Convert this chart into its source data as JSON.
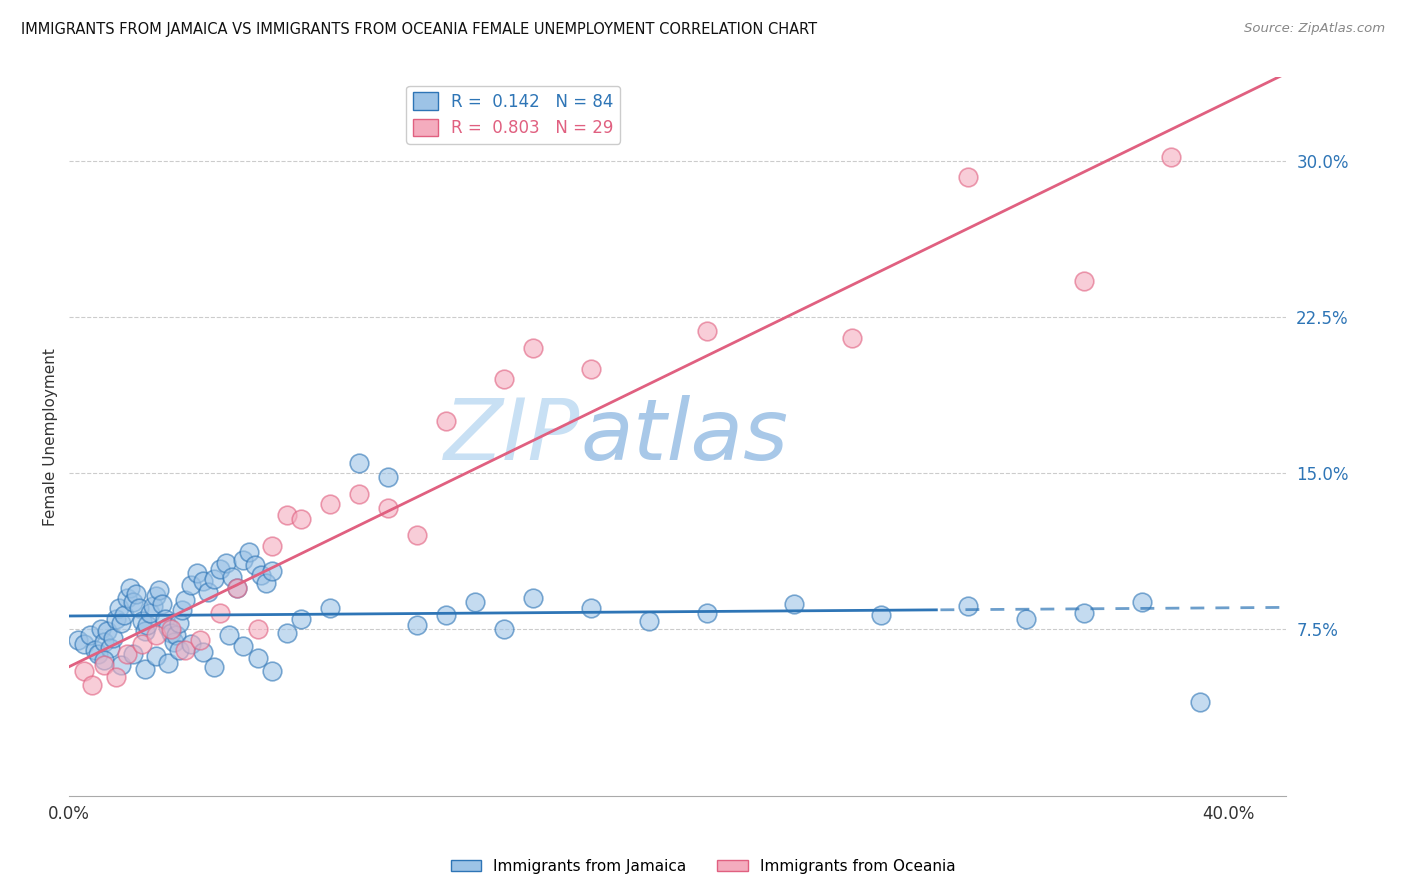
{
  "title": "IMMIGRANTS FROM JAMAICA VS IMMIGRANTS FROM OCEANIA FEMALE UNEMPLOYMENT CORRELATION CHART",
  "source": "Source: ZipAtlas.com",
  "ylabel": "Female Unemployment",
  "yticks": [
    0.075,
    0.15,
    0.225,
    0.3
  ],
  "ytick_labels": [
    "7.5%",
    "15.0%",
    "22.5%",
    "30.0%"
  ],
  "xlim": [
    0.0,
    0.42
  ],
  "ylim": [
    -0.005,
    0.34
  ],
  "r_jamaica": 0.142,
  "n_jamaica": 84,
  "r_oceania": 0.803,
  "n_oceania": 29,
  "color_jamaica": "#9DC3E6",
  "color_oceania": "#F4ACBE",
  "color_jamaica_dark": "#2E75B6",
  "color_oceania_dark": "#E06080",
  "watermark_zip": "ZIP",
  "watermark_atlas": "atlas",
  "watermark_color": "#D6EAF8",
  "legend_label_jamaica": "Immigrants from Jamaica",
  "legend_label_oceania": "Immigrants from Oceania",
  "jamaica_x": [
    0.003,
    0.005,
    0.007,
    0.009,
    0.01,
    0.011,
    0.012,
    0.013,
    0.014,
    0.015,
    0.016,
    0.017,
    0.018,
    0.019,
    0.02,
    0.021,
    0.022,
    0.023,
    0.024,
    0.025,
    0.026,
    0.027,
    0.028,
    0.029,
    0.03,
    0.031,
    0.032,
    0.033,
    0.034,
    0.035,
    0.036,
    0.037,
    0.038,
    0.039,
    0.04,
    0.042,
    0.044,
    0.046,
    0.048,
    0.05,
    0.052,
    0.054,
    0.056,
    0.058,
    0.06,
    0.062,
    0.064,
    0.066,
    0.068,
    0.07,
    0.012,
    0.018,
    0.022,
    0.026,
    0.03,
    0.034,
    0.038,
    0.042,
    0.046,
    0.05,
    0.055,
    0.06,
    0.065,
    0.07,
    0.075,
    0.08,
    0.09,
    0.1,
    0.11,
    0.12,
    0.13,
    0.14,
    0.15,
    0.16,
    0.18,
    0.2,
    0.22,
    0.25,
    0.28,
    0.31,
    0.33,
    0.35,
    0.37,
    0.39
  ],
  "jamaica_y": [
    0.07,
    0.068,
    0.072,
    0.065,
    0.063,
    0.075,
    0.069,
    0.074,
    0.066,
    0.071,
    0.08,
    0.085,
    0.078,
    0.082,
    0.09,
    0.095,
    0.088,
    0.092,
    0.085,
    0.079,
    0.074,
    0.077,
    0.083,
    0.086,
    0.091,
    0.094,
    0.087,
    0.08,
    0.076,
    0.073,
    0.069,
    0.072,
    0.078,
    0.084,
    0.089,
    0.096,
    0.102,
    0.098,
    0.093,
    0.099,
    0.104,
    0.107,
    0.1,
    0.095,
    0.108,
    0.112,
    0.106,
    0.101,
    0.097,
    0.103,
    0.06,
    0.058,
    0.063,
    0.056,
    0.062,
    0.059,
    0.065,
    0.068,
    0.064,
    0.057,
    0.072,
    0.067,
    0.061,
    0.055,
    0.073,
    0.08,
    0.085,
    0.155,
    0.148,
    0.077,
    0.082,
    0.088,
    0.075,
    0.09,
    0.085,
    0.079,
    0.083,
    0.087,
    0.082,
    0.086,
    0.08,
    0.083,
    0.088,
    0.04
  ],
  "oceania_x": [
    0.005,
    0.008,
    0.012,
    0.016,
    0.02,
    0.025,
    0.03,
    0.035,
    0.04,
    0.045,
    0.052,
    0.058,
    0.065,
    0.07,
    0.075,
    0.08,
    0.09,
    0.1,
    0.11,
    0.12,
    0.13,
    0.15,
    0.16,
    0.18,
    0.22,
    0.27,
    0.31,
    0.35,
    0.38
  ],
  "oceania_y": [
    0.055,
    0.048,
    0.058,
    0.052,
    0.063,
    0.068,
    0.072,
    0.075,
    0.065,
    0.07,
    0.083,
    0.095,
    0.075,
    0.115,
    0.13,
    0.128,
    0.135,
    0.14,
    0.133,
    0.12,
    0.175,
    0.195,
    0.21,
    0.2,
    0.218,
    0.215,
    0.292,
    0.242,
    0.302
  ],
  "jamaica_line_solid_end": 0.3,
  "jamaica_line_dash_start": 0.3,
  "jamaica_line_intercept": 0.0685,
  "jamaica_line_slope": 0.028,
  "oceania_line_intercept": 0.025,
  "oceania_line_slope": 0.72
}
